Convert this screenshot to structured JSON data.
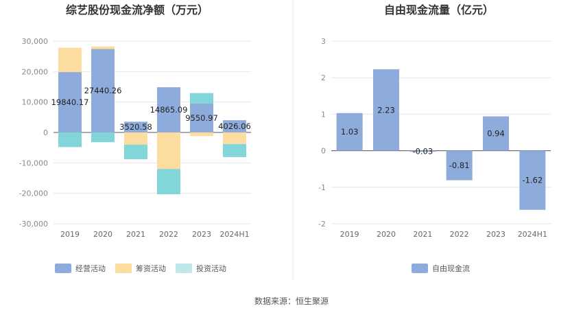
{
  "source_note": "数据来源：恒生聚源",
  "colors": {
    "operating": "#8eacdb",
    "financing": "#fddc9f",
    "investing": "#82d5d8",
    "fcf": "#8eacdb",
    "grid": "#e6e6e6",
    "divider": "#e8e8e8"
  },
  "chart_data": [
    {
      "type": "bar",
      "stacked": true,
      "title": "综艺股份现金流净额（万元）",
      "categories": [
        "2019",
        "2020",
        "2021",
        "2022",
        "2023",
        "2024H1"
      ],
      "ylim": [
        -30000,
        30000
      ],
      "yticks": [
        -30000,
        -20000,
        -10000,
        0,
        10000,
        20000,
        30000
      ],
      "ytick_labels": [
        "-30,000",
        "-20,000",
        "-10,000",
        "0",
        "10,000",
        "20,000",
        "30,000"
      ],
      "grid": true,
      "legend_position": "bottom",
      "series": [
        {
          "name": "经营活动",
          "color_key": "operating",
          "values": [
            19840.17,
            27440.26,
            3520.58,
            14865.09,
            9550.97,
            4026.06
          ],
          "labels": [
            "19840.17",
            "27440.26",
            "3520.58",
            "14865.09",
            "9550.97",
            "4026.06"
          ]
        },
        {
          "name": "筹资活动",
          "color_key": "financing",
          "values": [
            8000,
            800,
            -4000,
            -12000,
            -1200,
            -3800
          ]
        },
        {
          "name": "投资活动",
          "color_key": "investing",
          "values": [
            -4800,
            -3200,
            -4800,
            -8300,
            3400,
            -4300
          ]
        }
      ]
    },
    {
      "type": "bar",
      "title": "自由现金流量（亿元）",
      "categories": [
        "2019",
        "2020",
        "2021",
        "2022",
        "2023",
        "2024H1"
      ],
      "ylim": [
        -2,
        3
      ],
      "yticks": [
        -2,
        -1,
        0,
        1,
        2,
        3
      ],
      "ytick_labels": [
        "-2",
        "-1",
        "0",
        "1",
        "2",
        "3"
      ],
      "grid": true,
      "legend_position": "bottom",
      "series": [
        {
          "name": "自由现金流",
          "color_key": "fcf",
          "values": [
            1.03,
            2.23,
            -0.03,
            -0.81,
            0.94,
            -1.62
          ],
          "labels": [
            "1.03",
            "2.23",
            "-0.03",
            "-0.81",
            "0.94",
            "-1.62"
          ]
        }
      ]
    }
  ]
}
